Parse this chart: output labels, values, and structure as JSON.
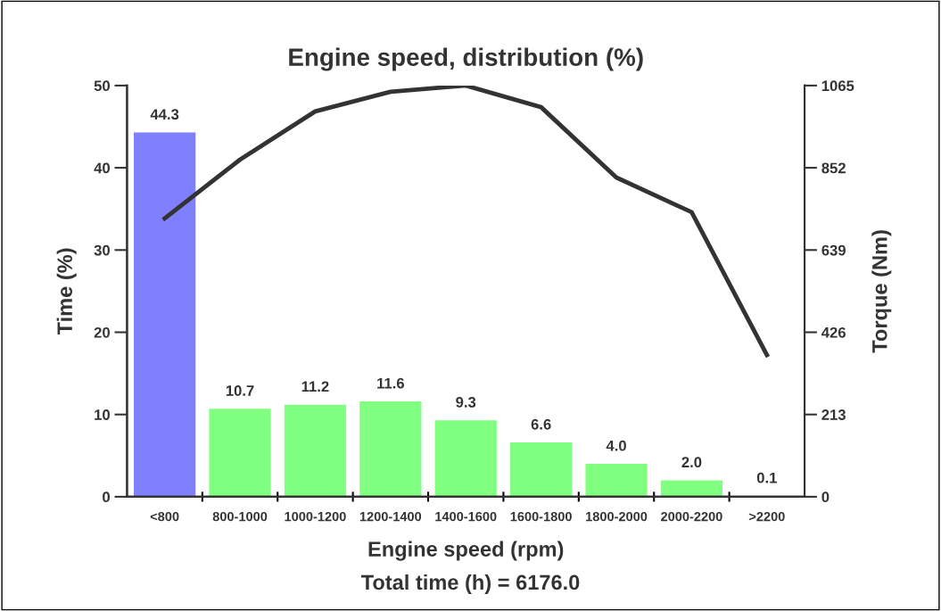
{
  "chart_data": {
    "type": "bar",
    "title": "Engine speed, distribution (%)",
    "xlabel": "Engine speed (rpm)",
    "ylabel": "Time (%)",
    "y2label": "Torque (Nm)",
    "annotations": [
      "Total time (h) = 6176.0"
    ],
    "categories": [
      "<800",
      "800-1000",
      "1000-1200",
      "1200-1400",
      "1400-1600",
      "1600-1800",
      "1800-2000",
      "2000-2200",
      ">2200"
    ],
    "series": [
      {
        "colors": [
          "#8080ff",
          "#80ff80",
          "#80ff80",
          "#80ff80",
          "#80ff80",
          "#80ff80",
          "#80ff80",
          "#80ff80",
          "#80ff80"
        ],
        "values": [
          44.3,
          10.7,
          11.2,
          11.6,
          9.3,
          6.6,
          4.0,
          2.0,
          0.1
        ],
        "value_labels": [
          "44.3",
          "10.7",
          "11.2",
          "11.6",
          "9.3",
          "6.6",
          "4.0",
          "2.0",
          "0.1"
        ]
      },
      {
        "type": "line",
        "axis": "y2",
        "color": "#333333",
        "values": [
          721,
          873,
          998,
          1049,
          1065,
          1009,
          827,
          737,
          367
        ]
      }
    ],
    "ylim": [
      0,
      50
    ],
    "yticks": [
      0,
      10,
      20,
      30,
      40,
      50
    ],
    "y2lim": [
      0,
      1065
    ],
    "y2ticks": [
      0,
      213,
      426,
      639,
      852,
      1065
    ],
    "grid": false,
    "legend": false,
    "marker": "none",
    "line_style": "solid"
  }
}
